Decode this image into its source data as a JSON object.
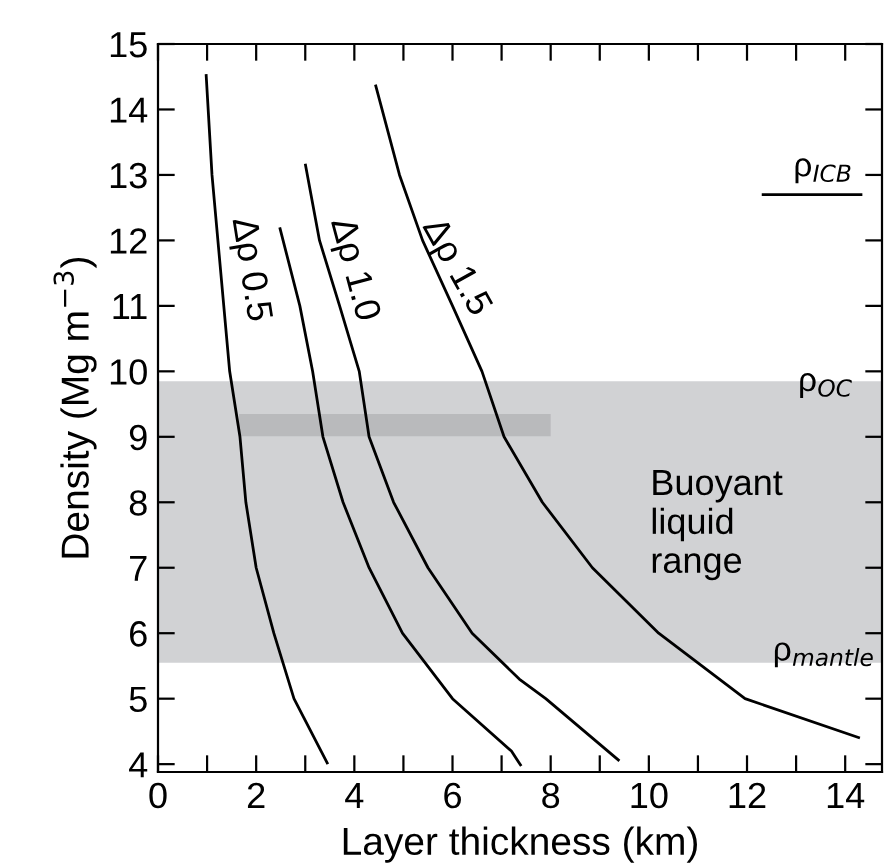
{
  "chart_data": {
    "type": "line",
    "xlabel": "Layer thickness (km)",
    "ylabel": "Density (Mg m$^{−3}$)",
    "xlim": [
      0,
      14.75
    ],
    "ylim": [
      3.88,
      15
    ],
    "xticks": [
      0,
      {
        "value": 1,
        "label": null
      },
      2,
      {
        "value": 3,
        "label": null
      },
      4,
      {
        "value": 5,
        "label": null
      },
      6,
      {
        "value": 7,
        "label": null
      },
      8,
      {
        "value": 9,
        "label": null
      },
      10,
      {
        "value": 11,
        "label": null
      },
      12,
      {
        "value": 13,
        "label": null
      },
      14
    ],
    "yticks": [
      4,
      5,
      6,
      7,
      8,
      9,
      10,
      11,
      12,
      13,
      14,
      15
    ],
    "grid": false,
    "legend": false,
    "marker": "none",
    "line_style": "solid",
    "series": [
      {
        "color": "#000000",
        "x": [
          0.98,
          1.1,
          1.22,
          1.46,
          1.67,
          1.79,
          2.0,
          2.36,
          2.77,
          3.46
        ],
        "values": [
          14.54,
          13,
          12,
          10,
          9,
          8,
          7,
          6,
          5,
          4.0
        ]
      },
      {
        "color": "#000000",
        "x": [
          2.48,
          2.89,
          3.15,
          3.36,
          3.77,
          4.3,
          4.98,
          6.0,
          7.2,
          7.4
        ],
        "values": [
          12.2,
          11,
          10,
          9,
          8,
          7,
          6,
          5,
          4.2,
          3.97
        ]
      },
      {
        "color": "#000000",
        "x": [
          3.0,
          3.29,
          3.7,
          4.1,
          4.3,
          4.8,
          5.5,
          6.4,
          7.36,
          7.9,
          9.4
        ],
        "values": [
          13.17,
          12,
          11,
          10,
          9,
          8,
          7,
          6,
          5.3,
          5,
          4.05
        ]
      },
      {
        "color": "#000000",
        "x": [
          4.43,
          4.92,
          5.39,
          6.0,
          6.6,
          7.05,
          7.83,
          8.85,
          10.2,
          11.96,
          14.3
        ],
        "values": [
          14.38,
          13,
          12,
          11,
          10,
          9,
          8,
          7,
          6,
          5,
          4.4
        ]
      },
      {
        "color": "#000000",
        "x": [
          12.3,
          14.35
        ],
        "values": [
          12.7,
          12.7
        ]
      },
      {
        "color": "#b9babc",
        "x": [
          1.65,
          8.0
        ],
        "values": [
          9.18,
          9.18
        ]
      }
    ],
    "bands": [
      {
        "axis": "y",
        "from": 5.55,
        "to": 9.85,
        "color": "#d1d2d4"
      }
    ],
    "annotations": [
      "Δρ 0.5",
      "Δρ 1.0",
      "Δρ 1.5",
      "Buoyant\nliquid\nrange",
      "ρ$_{ICB}$",
      "ρ$_{OC}$",
      "ρ$_{mantle}$"
    ]
  }
}
